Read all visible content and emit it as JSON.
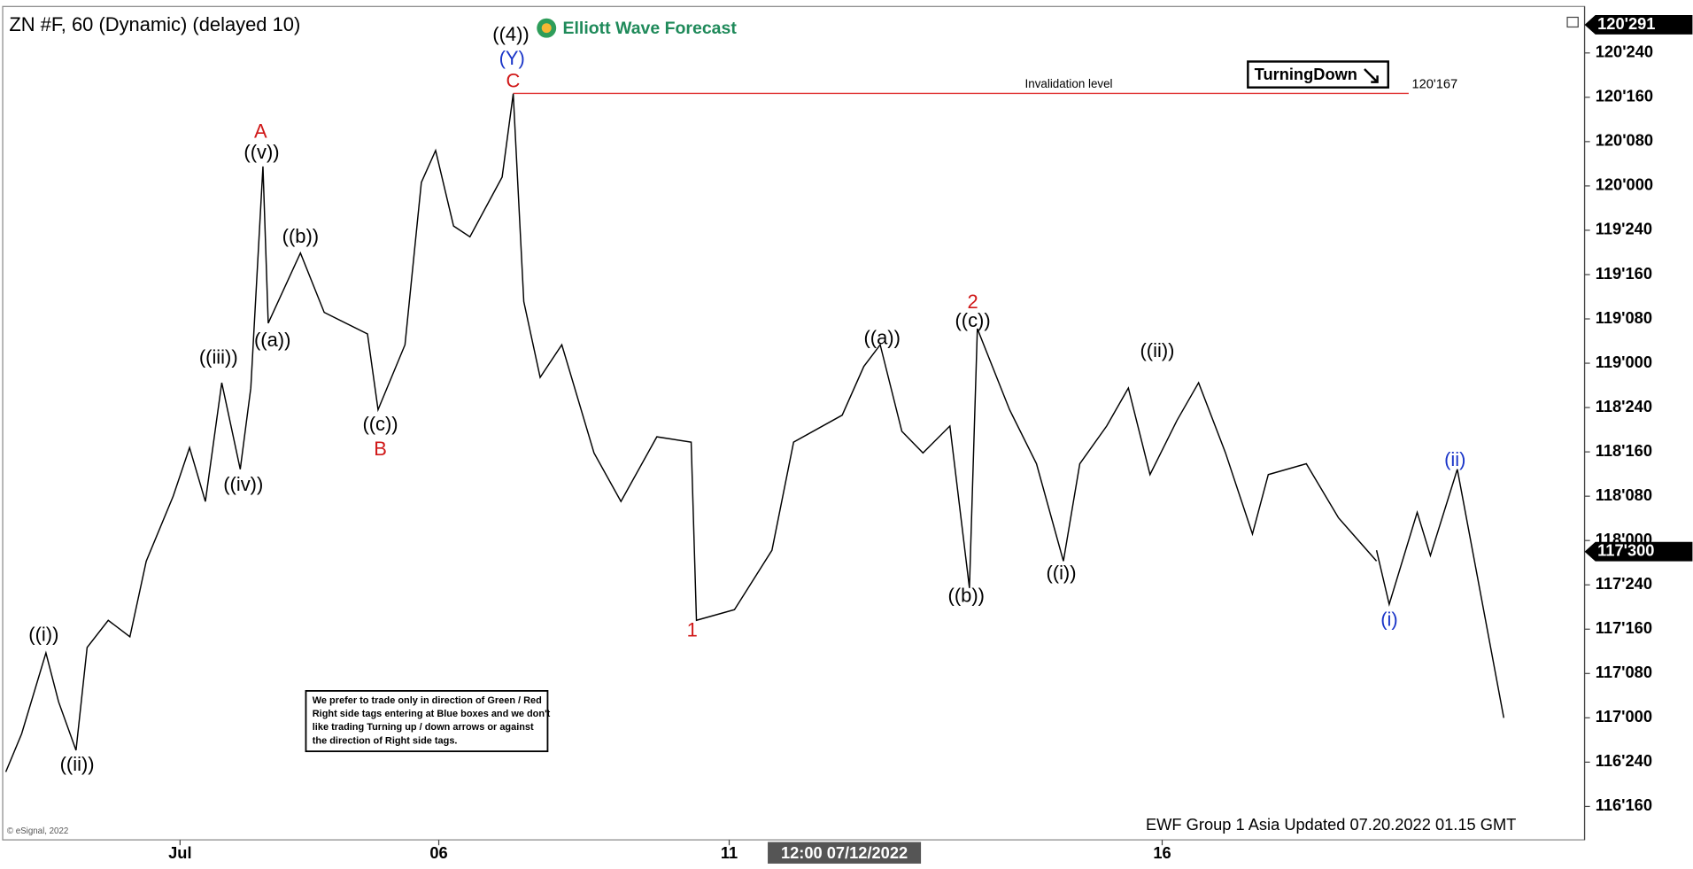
{
  "chart_data": {
    "type": "line",
    "title": "ZN #F, 60 (Dynamic) (delayed 10)",
    "logo": "Elliott Wave Forecast",
    "footer": "EWF Group 1 Asia Updated 07.20.2022 01.15 GMT",
    "copyright": "© eSignal, 2022",
    "crosshair_label": "12:00 07/12/2022",
    "badge": "TurningDown",
    "note": [
      "We prefer to trade only in direction of Green / Red",
      "Right side tags entering at Blue boxes and we don't",
      "like trading Turning up / down arrows or against",
      "the direction of Right side tags."
    ],
    "invalidation": {
      "text": "Invalidation level",
      "value": 120.5219,
      "label": "120'167",
      "color": "#e03030"
    },
    "price_markers": [
      {
        "value": 120.909,
        "label": "120'291"
      },
      {
        "value": 117.9375,
        "label": "117'300"
      }
    ],
    "xlim": [
      0,
      300
    ],
    "xticks": [
      {
        "value": 34,
        "label": "Jul"
      },
      {
        "value": 83,
        "label": "06"
      },
      {
        "value": 138,
        "label": "11"
      },
      {
        "value": 220,
        "label": "16"
      }
    ],
    "ylim": [
      116.33,
      121.0
    ],
    "yticks": [
      {
        "value": 120.75,
        "label": "120'240"
      },
      {
        "value": 120.5,
        "label": "120'160"
      },
      {
        "value": 120.25,
        "label": "120'080"
      },
      {
        "value": 120.0,
        "label": "120'000"
      },
      {
        "value": 119.75,
        "label": "119'240"
      },
      {
        "value": 119.5,
        "label": "119'160"
      },
      {
        "value": 119.25,
        "label": "119'080"
      },
      {
        "value": 119.0,
        "label": "119'000"
      },
      {
        "value": 118.75,
        "label": "118'240"
      },
      {
        "value": 118.5,
        "label": "118'160"
      },
      {
        "value": 118.25,
        "label": "118'080"
      },
      {
        "value": 118.0,
        "label": "118'000"
      },
      {
        "value": 117.75,
        "label": "117'240"
      },
      {
        "value": 117.5,
        "label": "117'160"
      },
      {
        "value": 117.25,
        "label": "117'080"
      },
      {
        "value": 117.0,
        "label": "117'000"
      },
      {
        "value": 116.75,
        "label": "116'240"
      },
      {
        "value": 116.5,
        "label": "116'160"
      }
    ],
    "series": [
      {
        "color": "#000000",
        "x": [
          1,
          4,
          8.6,
          11,
          14.3,
          16.4,
          20.4,
          24.5,
          27.6,
          32.7,
          35.8,
          38.8,
          41.9,
          45.4,
          47.4,
          49.7,
          50.7,
          56.8,
          61.3,
          69.5,
          71.5,
          76.6,
          79.7,
          82.4,
          85.8,
          88.9,
          95,
          97.1,
          99.1,
          102.2,
          106.3,
          112.4,
          117.5,
          124.3,
          130.8,
          131.8,
          139,
          146.1,
          150.2,
          159.4,
          163.5,
          166.6,
          170.7,
          174.7,
          179.8,
          183.5,
          185,
          191.1,
          196.2,
          201.3,
          204.4,
          209.5,
          213.6,
          217.7,
          222.8,
          226.9,
          232,
          237.1,
          240.1,
          247.3,
          253.4,
          260.6
        ],
        "values": [
          116.695,
          116.91,
          117.366,
          117.09,
          116.817,
          117.397,
          117.55,
          117.457,
          117.884,
          118.25,
          118.524,
          118.22,
          118.89,
          118.402,
          118.86,
          120.11,
          119.226,
          119.622,
          119.287,
          119.165,
          118.738,
          119.104,
          120.02,
          120.2,
          119.774,
          119.713,
          120.05,
          120.52,
          119.348,
          118.92,
          119.104,
          118.494,
          118.22,
          118.585,
          118.555,
          117.55,
          117.61,
          117.945,
          118.555,
          118.707,
          118.982,
          119.104,
          118.616,
          118.494,
          118.646,
          117.732,
          119.195,
          118.738,
          118.433,
          117.884,
          118.433,
          118.646,
          118.86,
          118.372,
          118.677,
          118.89,
          118.494,
          118.037,
          118.372,
          118.433,
          118.128,
          117.884
        ]
      },
      {
        "color": "#000000",
        "x": [
          260.6,
          263,
          268.3,
          270.8,
          275.9,
          284.7
        ],
        "values": [
          117.945,
          117.64,
          118.159,
          117.915,
          118.402,
          117.0
        ]
      }
    ],
    "annotations": [
      {
        "text": "((4))",
        "color": "#000000"
      },
      {
        "text": "(Y)",
        "color": "#1a35c8"
      },
      {
        "text": "C",
        "color": "#d01818"
      },
      {
        "text": "A",
        "color": "#d01818"
      },
      {
        "text": "((v))",
        "color": "#000000"
      },
      {
        "text": "((b))",
        "color": "#000000"
      },
      {
        "text": "((a))",
        "color": "#000000"
      },
      {
        "text": "((iii))",
        "color": "#000000"
      },
      {
        "text": "((c))",
        "color": "#000000"
      },
      {
        "text": "B",
        "color": "#d01818"
      },
      {
        "text": "((iv))",
        "color": "#000000"
      },
      {
        "text": "((i))",
        "color": "#000000"
      },
      {
        "text": "((ii))",
        "color": "#000000"
      },
      {
        "text": "1",
        "color": "#d01818"
      },
      {
        "text": "2",
        "color": "#d01818"
      },
      {
        "text": "((c))",
        "color": "#000000"
      },
      {
        "text": "((a))",
        "color": "#000000"
      },
      {
        "text": "((b))",
        "color": "#000000"
      },
      {
        "text": "((i))",
        "color": "#000000"
      },
      {
        "text": "((ii))",
        "color": "#000000"
      },
      {
        "text": "(i)",
        "color": "#1a35c8"
      },
      {
        "text": "(ii)",
        "color": "#1a35c8"
      }
    ]
  }
}
